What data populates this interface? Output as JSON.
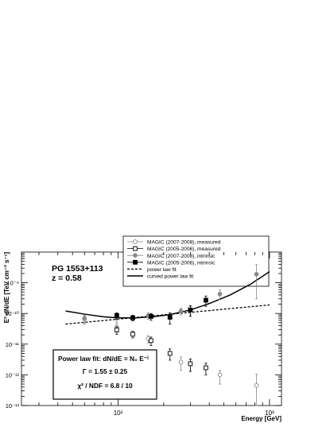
{
  "chart_data": {
    "type": "scatter",
    "xlabel": "Energy [GeV]",
    "ylabel": "E² dN/dE [TeV cm⁻² s⁻¹]",
    "xscale": "log",
    "yscale": "log",
    "xlim": [
      23,
      1200
    ],
    "ylim": [
      1e-13,
      1e-08
    ],
    "x_ticks": [
      {
        "value": 100,
        "label": "10²"
      },
      {
        "value": 1000,
        "label": "10³"
      }
    ],
    "y_ticks": [
      {
        "value": 1e-13,
        "label": "10⁻¹³"
      },
      {
        "value": 1e-12,
        "label": "10⁻¹²"
      },
      {
        "value": 1e-11,
        "label": "10⁻¹¹"
      },
      {
        "value": 1e-10,
        "label": "10⁻¹⁰"
      },
      {
        "value": 1e-09,
        "label": "10⁻⁹"
      }
    ],
    "annotation_title": "PG 1553+113",
    "annotation_z": "z = 0.58",
    "fit_box": {
      "line1": "Power law fit: dN/dE = N₀ E⁻ᴵ",
      "line2": "Γ = 1.55 ± 0.25",
      "line3": "χ² / NDF = 6.8 / 10"
    },
    "series": [
      {
        "name": "MAGIC (2007-2008), measured",
        "marker": "open-circle",
        "color": "#888888",
        "x": [
          60,
          98,
          158,
          260,
          300,
          470,
          820
        ],
        "y": [
          6.5e-11,
          3.5e-11,
          1.5e-11,
          2.6e-12,
          2.3e-12,
          1e-12,
          4.5e-13
        ],
        "yerr_low": [
          2e-11,
          1e-11,
          4e-12,
          1.2e-12,
          1e-12,
          5e-13,
          4.4e-13
        ],
        "yerr_high": [
          2e-11,
          1e-11,
          4e-12,
          1.2e-12,
          1e-12,
          4e-13,
          6e-13
        ]
      },
      {
        "name": "MAGIC (2005-2006), measured",
        "marker": "open-square",
        "color": "#000000",
        "x": [
          98,
          125,
          165,
          220,
          300,
          380
        ],
        "y": [
          2.9e-11,
          2.1e-11,
          1.3e-11,
          5e-12,
          2.3e-12,
          1.7e-12
        ],
        "yerr_low": [
          8e-12,
          5e-12,
          4e-12,
          2e-12,
          1e-12,
          7e-13
        ],
        "yerr_high": [
          8e-12,
          5e-12,
          4e-12,
          2e-12,
          1e-12,
          7e-13
        ]
      },
      {
        "name": "MAGIC (2007-2008), intrinsic",
        "marker": "filled-circle",
        "color": "#888888",
        "x": [
          60,
          98,
          158,
          260,
          300,
          470,
          820
        ],
        "y": [
          7e-11,
          7e-11,
          8.5e-11,
          1.2e-10,
          1.3e-10,
          4.3e-10,
          1.9e-09
        ],
        "yerr_low": [
          2e-11,
          2e-11,
          2e-11,
          3e-11,
          4e-11,
          1.5e-10,
          1.6e-09
        ],
        "yerr_high": [
          2e-11,
          2e-11,
          2e-11,
          3e-11,
          4e-11,
          1.5e-10,
          2e-09
        ]
      },
      {
        "name": "MAGIC (2005-2006), intrinsic",
        "marker": "filled-square",
        "color": "#000000",
        "x": [
          98,
          125,
          165,
          220,
          300,
          380
        ],
        "y": [
          8.5e-11,
          7.2e-11,
          8e-11,
          7.5e-11,
          1.3e-10,
          2.7e-10
        ],
        "yerr_low": [
          2e-11,
          1.5e-11,
          2e-11,
          3e-11,
          5e-11,
          1e-10
        ],
        "yerr_high": [
          2e-11,
          1.5e-11,
          2e-11,
          3e-11,
          5e-11,
          1e-10
        ]
      }
    ],
    "fits": [
      {
        "name": "power law fit",
        "style": "dashed",
        "x": [
          45,
          1000
        ],
        "y": [
          4.5e-11,
          1.9e-10
        ]
      },
      {
        "name": "curved power law fit",
        "style": "solid",
        "x": [
          45,
          60,
          80,
          100,
          130,
          170,
          220,
          300,
          400,
          550,
          750,
          1000
        ],
        "y": [
          1.2e-10,
          9.5e-11,
          7.8e-11,
          7.2e-11,
          7.2e-11,
          7.8e-11,
          9.2e-11,
          1.3e-10,
          2.1e-10,
          4e-10,
          9e-10,
          2.3e-09
        ]
      }
    ]
  }
}
